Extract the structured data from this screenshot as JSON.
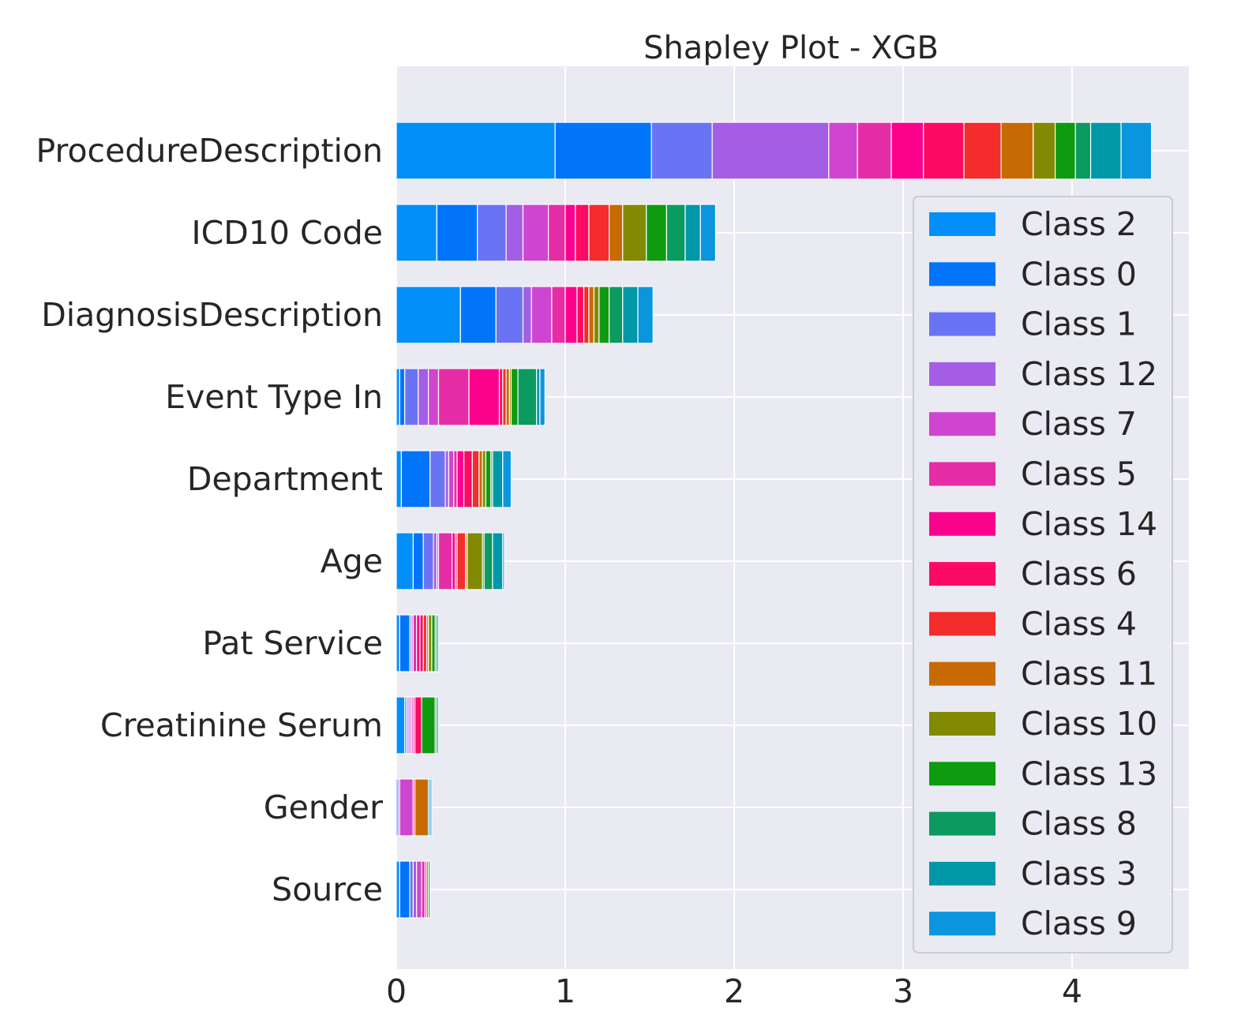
{
  "chart_data": {
    "type": "bar",
    "orientation": "horizontal",
    "stacked": true,
    "title": "Shapley Plot - XGB",
    "xlabel": "",
    "ylabel": "",
    "xlim": [
      0,
      4.7
    ],
    "x_ticks": [
      "0",
      "1",
      "2",
      "3",
      "4"
    ],
    "grid": true,
    "legend_position": "right",
    "categories": [
      "ProcedureDescription",
      "ICD10 Code",
      "DiagnosisDescription",
      "Event Type In",
      "Department",
      "Age",
      "Pat Service",
      "Creatinine Serum",
      "Gender",
      "Source"
    ],
    "series": [
      {
        "name": "Class 2",
        "color": "#028ffa",
        "values": [
          0.94,
          0.24,
          0.38,
          0.02,
          0.03,
          0.1,
          0.02,
          0.05,
          0.01,
          0.02
        ]
      },
      {
        "name": "Class 0",
        "color": "#0075fa",
        "values": [
          0.57,
          0.24,
          0.21,
          0.03,
          0.17,
          0.06,
          0.06,
          0.01,
          0.0,
          0.06
        ]
      },
      {
        "name": "Class 1",
        "color": "#6b73f5",
        "values": [
          0.36,
          0.17,
          0.16,
          0.08,
          0.09,
          0.06,
          0.01,
          0.01,
          0.0,
          0.02
        ]
      },
      {
        "name": "Class 12",
        "color": "#a45ee5",
        "values": [
          0.69,
          0.1,
          0.05,
          0.06,
          0.02,
          0.02,
          0.01,
          0.01,
          0.01,
          0.02
        ]
      },
      {
        "name": "Class 7",
        "color": "#ce45cf",
        "values": [
          0.17,
          0.15,
          0.12,
          0.06,
          0.03,
          0.01,
          0.0,
          0.01,
          0.08,
          0.03
        ]
      },
      {
        "name": "Class 5",
        "color": "#e52da6",
        "values": [
          0.2,
          0.1,
          0.08,
          0.18,
          0.02,
          0.08,
          0.02,
          0.01,
          0.0,
          0.02
        ]
      },
      {
        "name": "Class 14",
        "color": "#fb028d",
        "values": [
          0.19,
          0.06,
          0.07,
          0.18,
          0.04,
          0.02,
          0.02,
          0.01,
          0.0,
          0.01
        ]
      },
      {
        "name": "Class 6",
        "color": "#fb0c62",
        "values": [
          0.24,
          0.08,
          0.04,
          0.02,
          0.05,
          0.01,
          0.02,
          0.04,
          0.0,
          0.0
        ]
      },
      {
        "name": "Class 4",
        "color": "#f32c2c",
        "values": [
          0.22,
          0.12,
          0.03,
          0.02,
          0.04,
          0.05,
          0.02,
          0.0,
          0.01,
          0.0
        ]
      },
      {
        "name": "Class 11",
        "color": "#c86a03",
        "values": [
          0.19,
          0.08,
          0.03,
          0.02,
          0.02,
          0.01,
          0.01,
          0.0,
          0.08,
          0.0
        ]
      },
      {
        "name": "Class 10",
        "color": "#818a00",
        "values": [
          0.13,
          0.14,
          0.03,
          0.01,
          0.02,
          0.09,
          0.02,
          0.0,
          0.0,
          0.01
        ]
      },
      {
        "name": "Class 13",
        "color": "#0e9b10",
        "values": [
          0.12,
          0.12,
          0.06,
          0.04,
          0.03,
          0.01,
          0.02,
          0.08,
          0.0,
          0.01
        ]
      },
      {
        "name": "Class 8",
        "color": "#0b9a60",
        "values": [
          0.09,
          0.11,
          0.08,
          0.11,
          0.01,
          0.05,
          0.01,
          0.01,
          0.0,
          0.0
        ]
      },
      {
        "name": "Class 3",
        "color": "#0098a8",
        "values": [
          0.18,
          0.09,
          0.09,
          0.02,
          0.06,
          0.06,
          0.0,
          0.0,
          0.01,
          0.0
        ]
      },
      {
        "name": "Class 9",
        "color": "#0b95dc",
        "values": [
          0.18,
          0.09,
          0.09,
          0.03,
          0.05,
          0.01,
          0.01,
          0.01,
          0.01,
          0.0
        ]
      }
    ]
  }
}
